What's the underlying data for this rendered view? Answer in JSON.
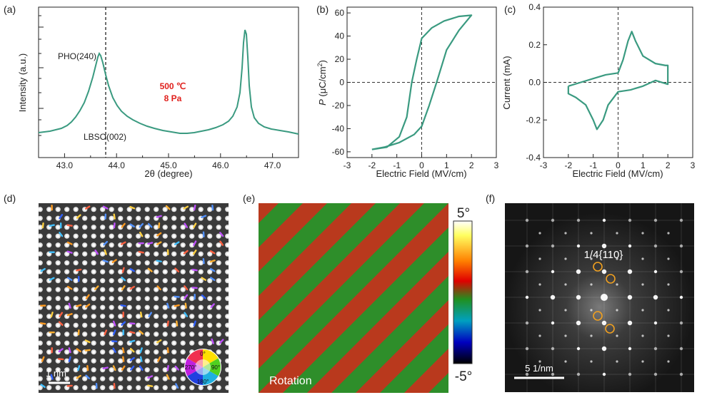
{
  "figure": {
    "panel_labels": [
      "(a)",
      "(b)",
      "(c)",
      "(d)",
      "(e)",
      "(f)"
    ],
    "colors": {
      "curve": "#3a9a80",
      "annotation_red": "#e0201c",
      "ring": "#f0a020",
      "axis": "#222222"
    }
  },
  "chart_data": [
    {
      "id": "a",
      "type": "line",
      "xlabel": "2θ (degree)",
      "ylabel": "Intensity (a.u.)",
      "xlim": [
        42.5,
        47.5
      ],
      "xticks": [
        "43.0",
        "44.0",
        "45.0",
        "46.0",
        "47.0"
      ],
      "y_scale": "log",
      "peaks": [
        {
          "name": "PHO(240)",
          "x": 43.7
        },
        {
          "name": "",
          "x": 46.5
        }
      ],
      "reference_line": {
        "label": "LBSO(002)",
        "x": 43.83
      },
      "annotation": [
        "500 ℃",
        "8 Pa"
      ]
    },
    {
      "id": "b",
      "type": "line",
      "xlabel": "Electric Field (MV/cm)",
      "ylabel_italic": "P",
      "ylabel_rest": " (μC/cm",
      "ylabel_sup": "2",
      "ylabel_close": ")",
      "xlim": [
        -3,
        3
      ],
      "ylim": [
        -65,
        65
      ],
      "xticks": [
        "-3",
        "-2",
        "-1",
        "0",
        "1",
        "2",
        "3"
      ],
      "xtick_values": [
        -3,
        -2,
        -1,
        0,
        1,
        2,
        3
      ],
      "yticks": [
        "-60",
        "-40",
        "-20",
        "0",
        "20",
        "40",
        "60"
      ],
      "ytick_values": [
        -60,
        -40,
        -20,
        0,
        20,
        40,
        60
      ],
      "series": [
        {
          "name": "P-E loop",
          "x": [
            -2.0,
            -1.4,
            -0.9,
            -0.6,
            -0.4,
            -0.2,
            0.0,
            0.4,
            0.9,
            1.5,
            2.0,
            1.5,
            1.0,
            0.8,
            0.6,
            0.3,
            0.0,
            -0.3,
            -0.9,
            -1.5,
            -2.0
          ],
          "y": [
            -58,
            -56,
            -47,
            -30,
            0,
            20,
            38,
            47,
            53,
            57,
            58,
            45,
            28,
            14,
            0,
            -20,
            -38,
            -45,
            -52,
            -56,
            -58
          ]
        }
      ]
    },
    {
      "id": "c",
      "type": "line",
      "xlabel": "Electric Field (MV/cm)",
      "ylabel": "Current (mA)",
      "xlim": [
        -3,
        3
      ],
      "ylim": [
        -0.4,
        0.4
      ],
      "xticks": [
        "-3",
        "-2",
        "-1",
        "0",
        "1",
        "2",
        "3"
      ],
      "xtick_values": [
        -3,
        -2,
        -1,
        0,
        1,
        2,
        3
      ],
      "yticks": [
        "-0.4",
        "-0.2",
        "0.0",
        "0.2",
        "0.4"
      ],
      "ytick_values": [
        -0.4,
        -0.2,
        0.0,
        0.2,
        0.4
      ],
      "series": [
        {
          "name": "I-E loop",
          "x": [
            -2.0,
            -1.5,
            -1.0,
            -0.5,
            0.0,
            0.2,
            0.4,
            0.55,
            0.7,
            1.0,
            1.5,
            1.9,
            2.0,
            2.0,
            1.5,
            1.0,
            0.5,
            0.0,
            -0.4,
            -0.6,
            -0.85,
            -1.0,
            -1.3,
            -1.7,
            -2.0,
            -2.0
          ],
          "y": [
            -0.02,
            0.0,
            0.02,
            0.04,
            0.05,
            0.12,
            0.22,
            0.27,
            0.22,
            0.14,
            0.1,
            0.09,
            0.09,
            -0.01,
            0.01,
            -0.02,
            -0.04,
            -0.05,
            -0.12,
            -0.2,
            -0.25,
            -0.2,
            -0.12,
            -0.08,
            -0.06,
            -0.02
          ]
        }
      ]
    }
  ],
  "panel_d": {
    "scale_label": "1 nm",
    "wheel_labels": [
      "0°",
      "90°",
      "180°",
      "270°"
    ]
  },
  "panel_e": {
    "label": "Rotation",
    "colorbar_max": "5°",
    "colorbar_min": "-5°"
  },
  "panel_f": {
    "label": "1/4{110}",
    "scale_label": "5 1/nm"
  }
}
